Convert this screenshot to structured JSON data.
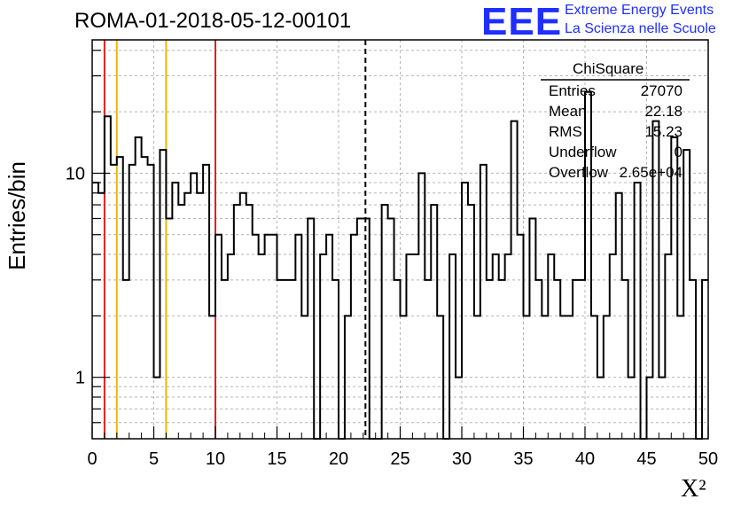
{
  "run_title": "ROMA-01-2018-05-12-00101",
  "logo_text": "EEE",
  "org_line1": "Extreme Energy Events",
  "org_line2": "La Scienza nelle Scuole",
  "stats": {
    "title": "ChiSquare",
    "rows": [
      {
        "label": "Entries",
        "value": "27070"
      },
      {
        "label": "Mean",
        "value": "22.18"
      },
      {
        "label": "RMS",
        "value": "15.23"
      },
      {
        "label": "Underflow",
        "value": "0"
      },
      {
        "label": "Overflow",
        "value": "2.65e+04"
      }
    ]
  },
  "chart_data": {
    "type": "histogram",
    "title": "ROMA-01-2018-05-12-00101",
    "xlabel": "X²",
    "ylabel": "Entries/bin",
    "x_scale": "linear",
    "y_scale": "log",
    "xlim": [
      0,
      50
    ],
    "ylim": [
      0.5,
      45
    ],
    "bin_width": 0.5,
    "x_ticks": [
      0,
      5,
      10,
      15,
      20,
      25,
      30,
      35,
      40,
      45,
      50
    ],
    "y_tick_labels": [
      {
        "value": 1,
        "label": "1"
      },
      {
        "value": 10,
        "label": "10"
      }
    ],
    "grid": true,
    "values": [
      9,
      8,
      19,
      11,
      12,
      3,
      11,
      15,
      12,
      11,
      1,
      13,
      6,
      9,
      7,
      8,
      10,
      8,
      11,
      2,
      5,
      3,
      4,
      7,
      8,
      7,
      5,
      4,
      5,
      5,
      3,
      3,
      3,
      5,
      2,
      6,
      0,
      4,
      5,
      3,
      0,
      2,
      5,
      6,
      6,
      0,
      0,
      7,
      6,
      3,
      2,
      4,
      4,
      10,
      3,
      7,
      2,
      0,
      4,
      1,
      9,
      7,
      2,
      11,
      3,
      4,
      3,
      4,
      18,
      5,
      2,
      6,
      3,
      2,
      4,
      3,
      2,
      2,
      3,
      3,
      25,
      2,
      1,
      2,
      4,
      8,
      3,
      1,
      9,
      0,
      1,
      18,
      1,
      4,
      15,
      2,
      13,
      3,
      0,
      3
    ],
    "vertical_lines": [
      {
        "x": 1,
        "color": "#e0211a",
        "style": "solid"
      },
      {
        "x": 2,
        "color": "#f2b600",
        "style": "solid"
      },
      {
        "x": 6,
        "color": "#f2b600",
        "style": "solid"
      },
      {
        "x": 10,
        "color": "#e0211a",
        "style": "solid"
      },
      {
        "x": 22.18,
        "color": "#000000",
        "style": "dashed"
      }
    ]
  }
}
